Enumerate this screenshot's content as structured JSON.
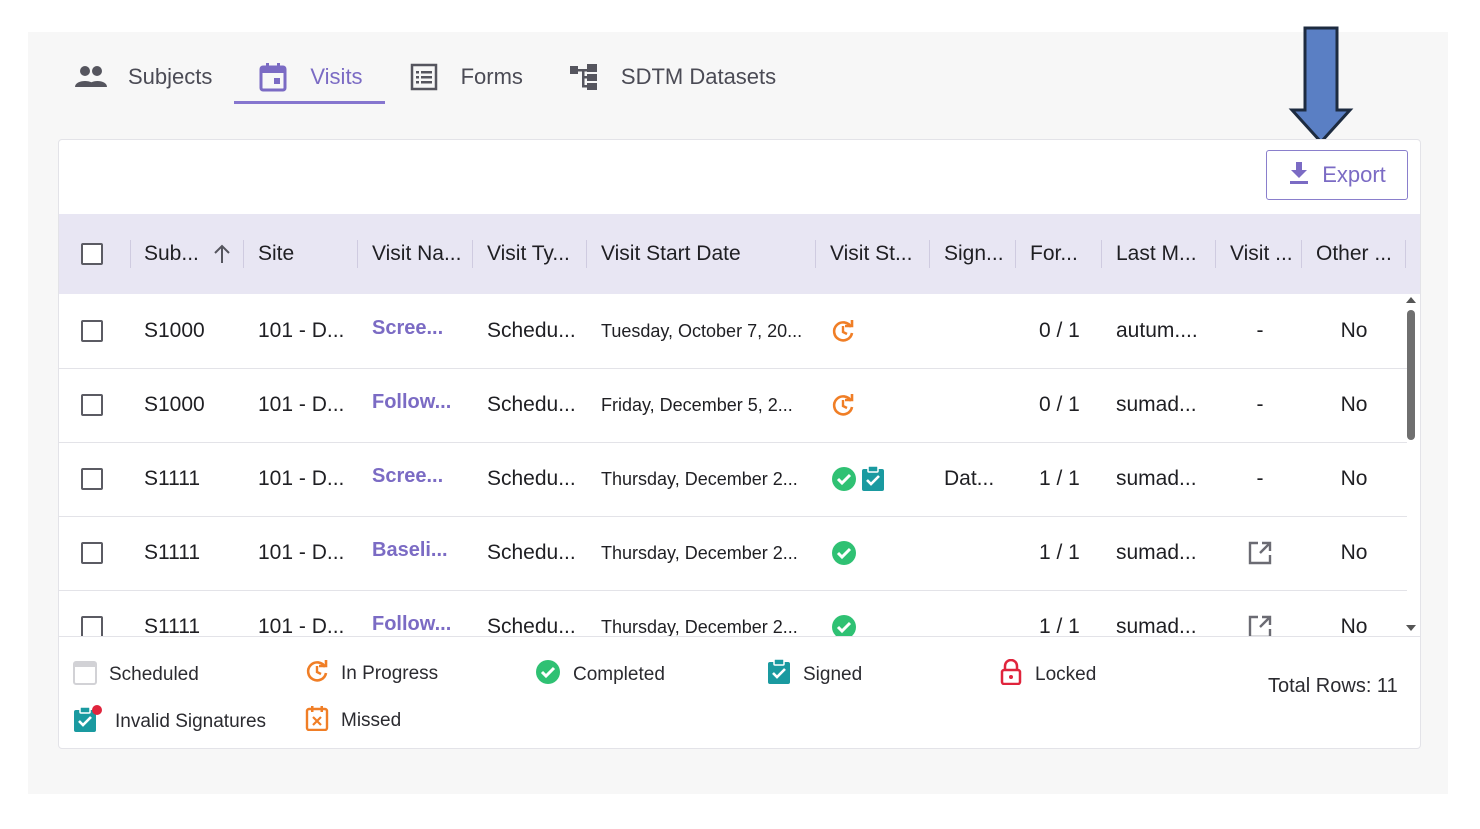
{
  "tabs": [
    {
      "label": "Subjects",
      "icon": "people-icon",
      "active": false
    },
    {
      "label": "Visits",
      "icon": "calendar-icon",
      "active": true
    },
    {
      "label": "Forms",
      "icon": "list-icon",
      "active": false
    },
    {
      "label": "SDTM Datasets",
      "icon": "hierarchy-icon",
      "active": false
    }
  ],
  "toolbar": {
    "export_label": "Export"
  },
  "table": {
    "columns": [
      "Sub...",
      "Site",
      "Visit Na...",
      "Visit Ty...",
      "Visit Start Date",
      "Visit St...",
      "Sign...",
      "For...",
      "Last M...",
      "Visit ...",
      "Other ..."
    ],
    "rows": [
      {
        "subject": "S1000",
        "site": "101 - D...",
        "visit_name": "Scree...",
        "visit_type": "Schedu...",
        "start_date": "Tuesday, October 7, 20...",
        "status": [
          "in-progress"
        ],
        "sign": "",
        "forms": "0 / 1",
        "last_modified": "autum....",
        "visit_link": "-",
        "other": "No"
      },
      {
        "subject": "S1000",
        "site": "101 - D...",
        "visit_name": "Follow...",
        "visit_type": "Schedu...",
        "start_date": "Friday, December 5, 2...",
        "status": [
          "in-progress"
        ],
        "sign": "",
        "forms": "0 / 1",
        "last_modified": "sumad...",
        "visit_link": "-",
        "other": "No"
      },
      {
        "subject": "S1111",
        "site": "101 - D...",
        "visit_name": "Scree...",
        "visit_type": "Schedu...",
        "start_date": "Thursday, December 2...",
        "status": [
          "completed",
          "signed"
        ],
        "sign": "Dat...",
        "forms": "1 / 1",
        "last_modified": "sumad...",
        "visit_link": "-",
        "other": "No"
      },
      {
        "subject": "S1111",
        "site": "101 - D...",
        "visit_name": "Baseli...",
        "visit_type": "Schedu...",
        "start_date": "Thursday, December 2...",
        "status": [
          "completed"
        ],
        "sign": "",
        "forms": "1 / 1",
        "last_modified": "sumad...",
        "visit_link": "open-icon",
        "other": "No"
      },
      {
        "subject": "S1111",
        "site": "101 - D...",
        "visit_name": "Follow...",
        "visit_type": "Schedu...",
        "start_date": "Thursday, December 2...",
        "status": [
          "completed"
        ],
        "sign": "",
        "forms": "1 / 1",
        "last_modified": "sumad...",
        "visit_link": "open-icon",
        "other": "No"
      }
    ]
  },
  "legend": [
    {
      "label": "Scheduled",
      "icon": "scheduled-icon"
    },
    {
      "label": "In Progress",
      "icon": "in-progress-icon"
    },
    {
      "label": "Completed",
      "icon": "completed-icon"
    },
    {
      "label": "Signed",
      "icon": "signed-icon"
    },
    {
      "label": "Locked",
      "icon": "lock-icon"
    },
    {
      "label": "Invalid Signatures",
      "icon": "invalid-signature-icon"
    },
    {
      "label": "Missed",
      "icon": "missed-icon"
    }
  ],
  "footer": {
    "total_rows": "Total Rows: 11"
  },
  "colors": {
    "accent": "#7b6bc4",
    "header_bg": "#e8e6f3",
    "in_progress": "#f07e26",
    "completed": "#2fc173",
    "signed": "#1a9aa0",
    "locked": "#e0243c",
    "annotation_arrow": "#5a7fc4"
  }
}
